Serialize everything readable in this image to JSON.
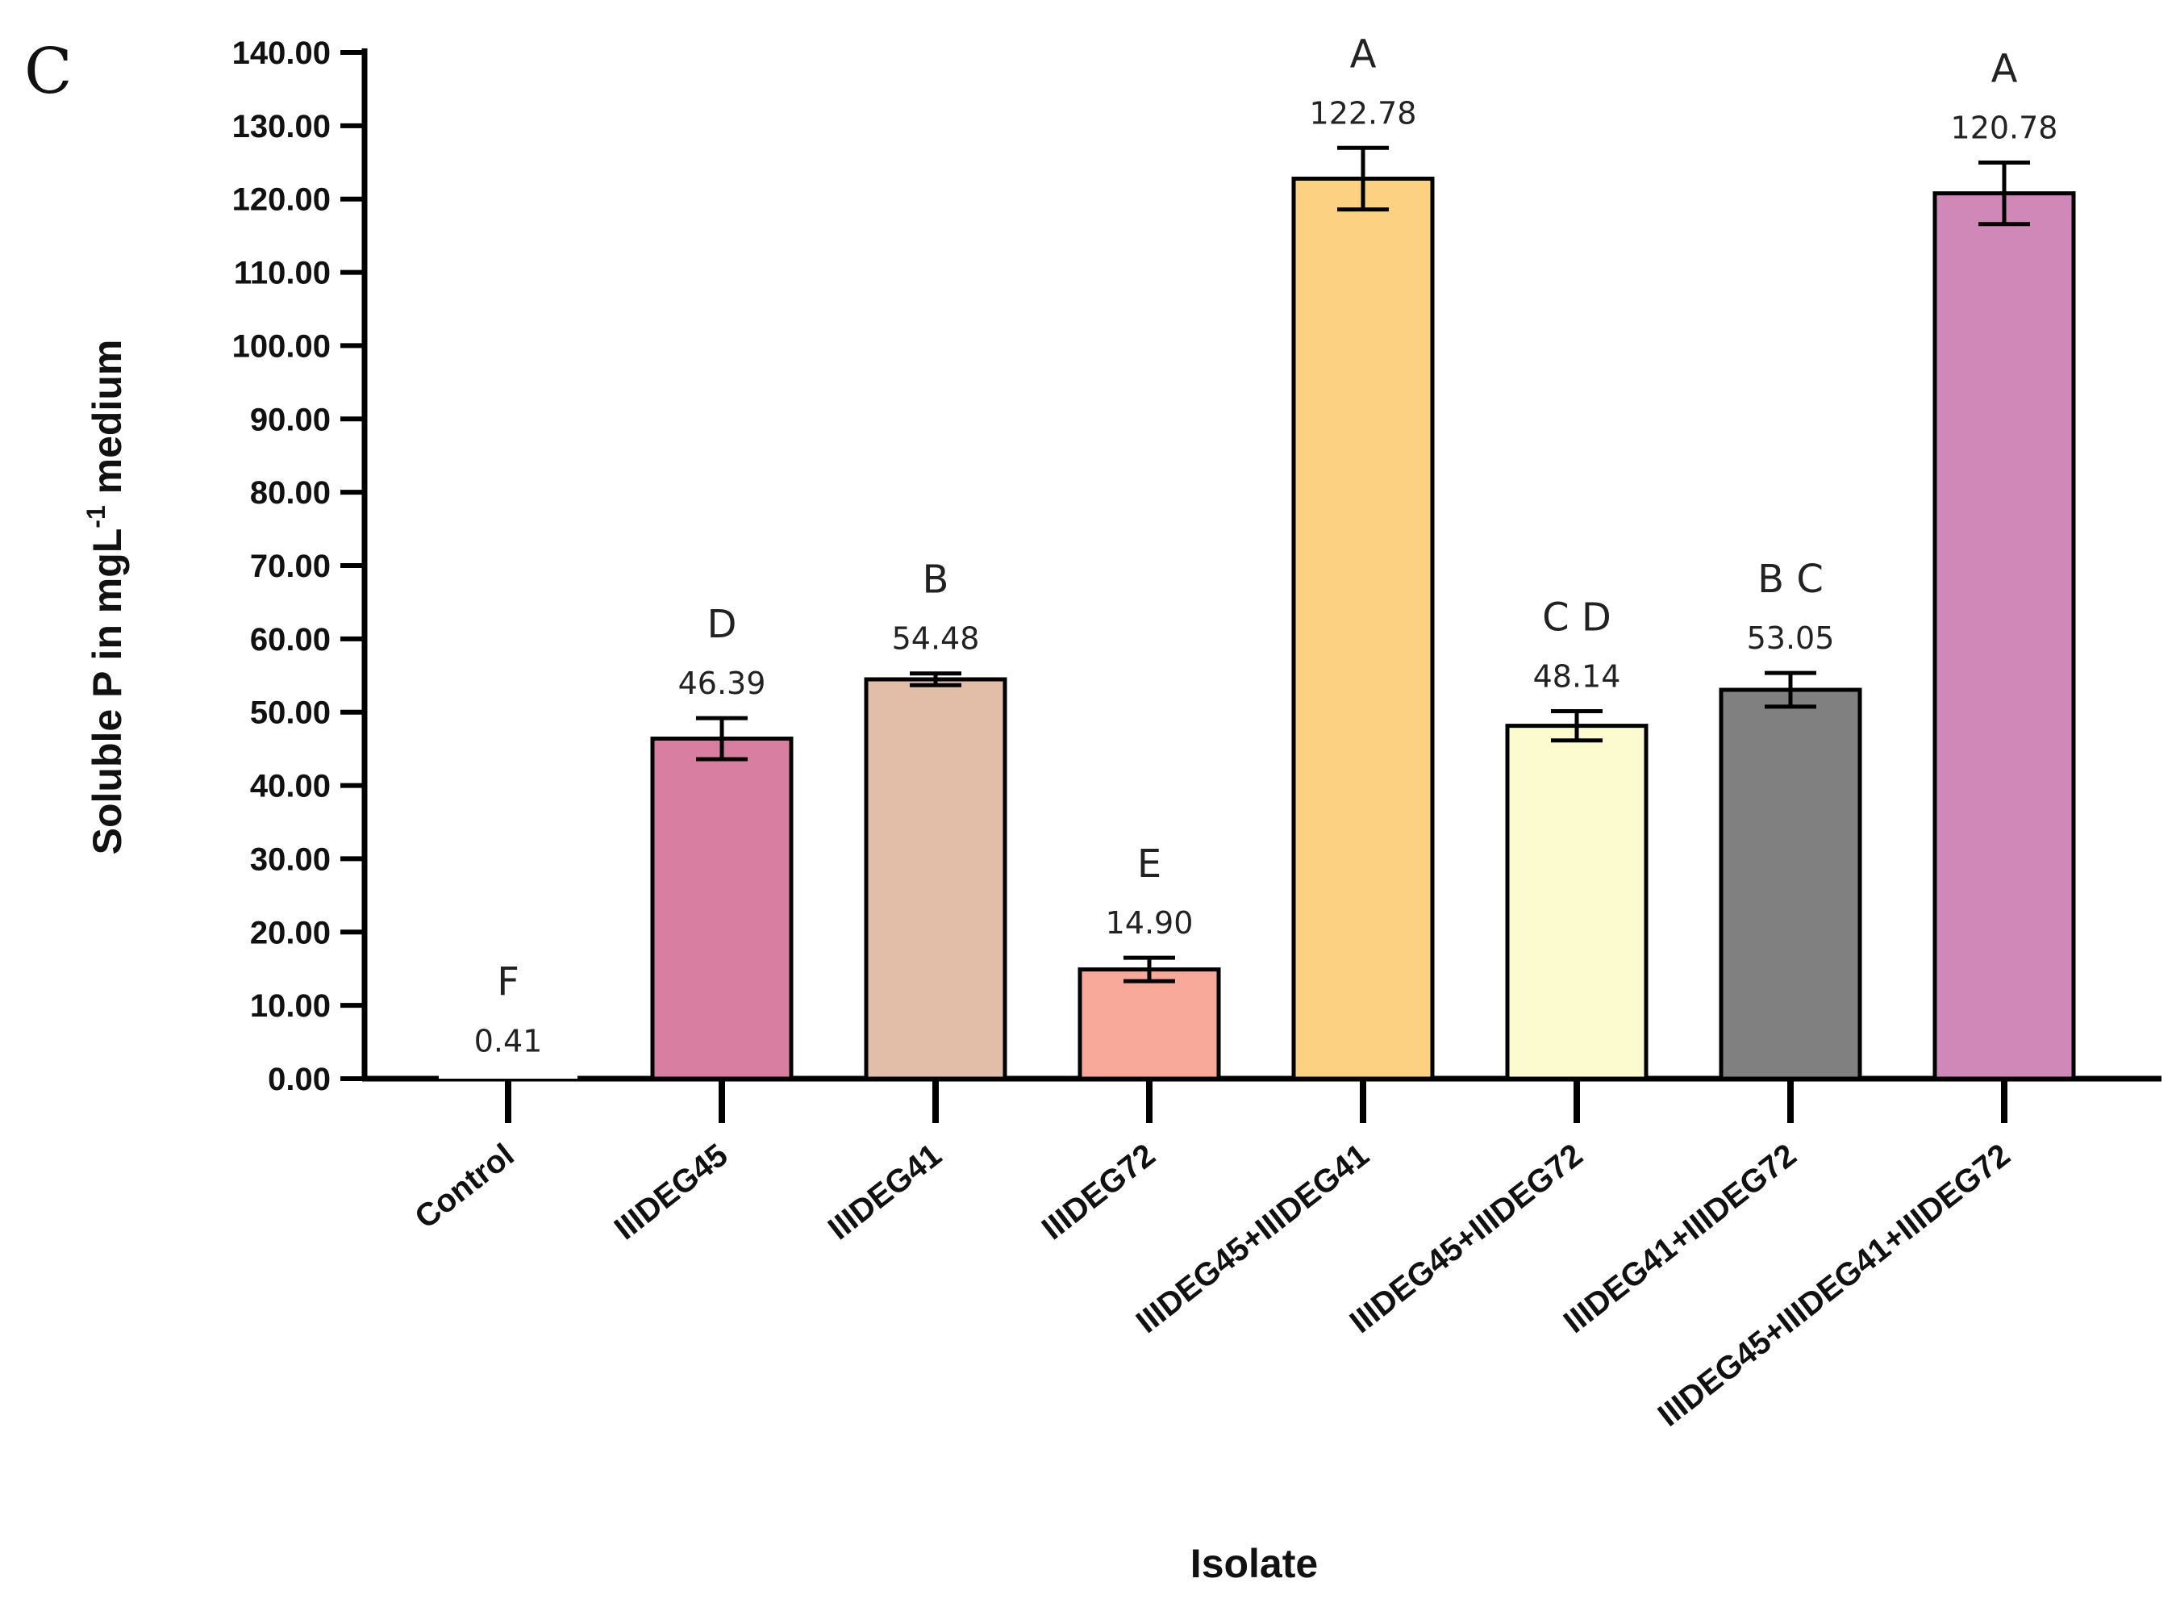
{
  "panel_label": "C",
  "chart_data": {
    "type": "bar",
    "xlabel": "Isolate",
    "ylabel_main": "Soluble P in mgL",
    "ylabel_sup": "-1",
    "ylabel_tail": " medium",
    "ylim": [
      0,
      140
    ],
    "yticks": [
      "0.00",
      "10.00",
      "20.00",
      "30.00",
      "40.00",
      "50.00",
      "60.00",
      "70.00",
      "80.00",
      "90.00",
      "100.00",
      "110.00",
      "120.00",
      "130.00",
      "140.00"
    ],
    "categories": [
      "Control",
      "IIIDEG45",
      "IIIDEG41",
      "IIIDEG72",
      "IIIDEG45+IIIDEG41",
      "IIIDEG45+IIIDEG72",
      "IIIDEG41+IIIDEG72",
      "IIIDEG45+IIIDEG41+IIIDEG72"
    ],
    "values": [
      0.41,
      46.39,
      54.48,
      14.9,
      122.78,
      48.14,
      53.05,
      120.78
    ],
    "value_labels": [
      "0.41",
      "46.39",
      "54.48",
      "14.90",
      "122.78",
      "48.14",
      "53.05",
      "120.78"
    ],
    "errors": [
      0,
      2.8,
      0.8,
      1.6,
      4.2,
      2.0,
      2.3,
      4.2
    ],
    "significance": [
      "F",
      "D",
      "B",
      "E",
      "A",
      "C D",
      "B C",
      "A"
    ],
    "colors": [
      "#ffffff",
      "#d87ea0",
      "#e2bda8",
      "#f9a99a",
      "#fdd182",
      "#fbfbcf",
      "#808080",
      "#d088b8"
    ]
  }
}
